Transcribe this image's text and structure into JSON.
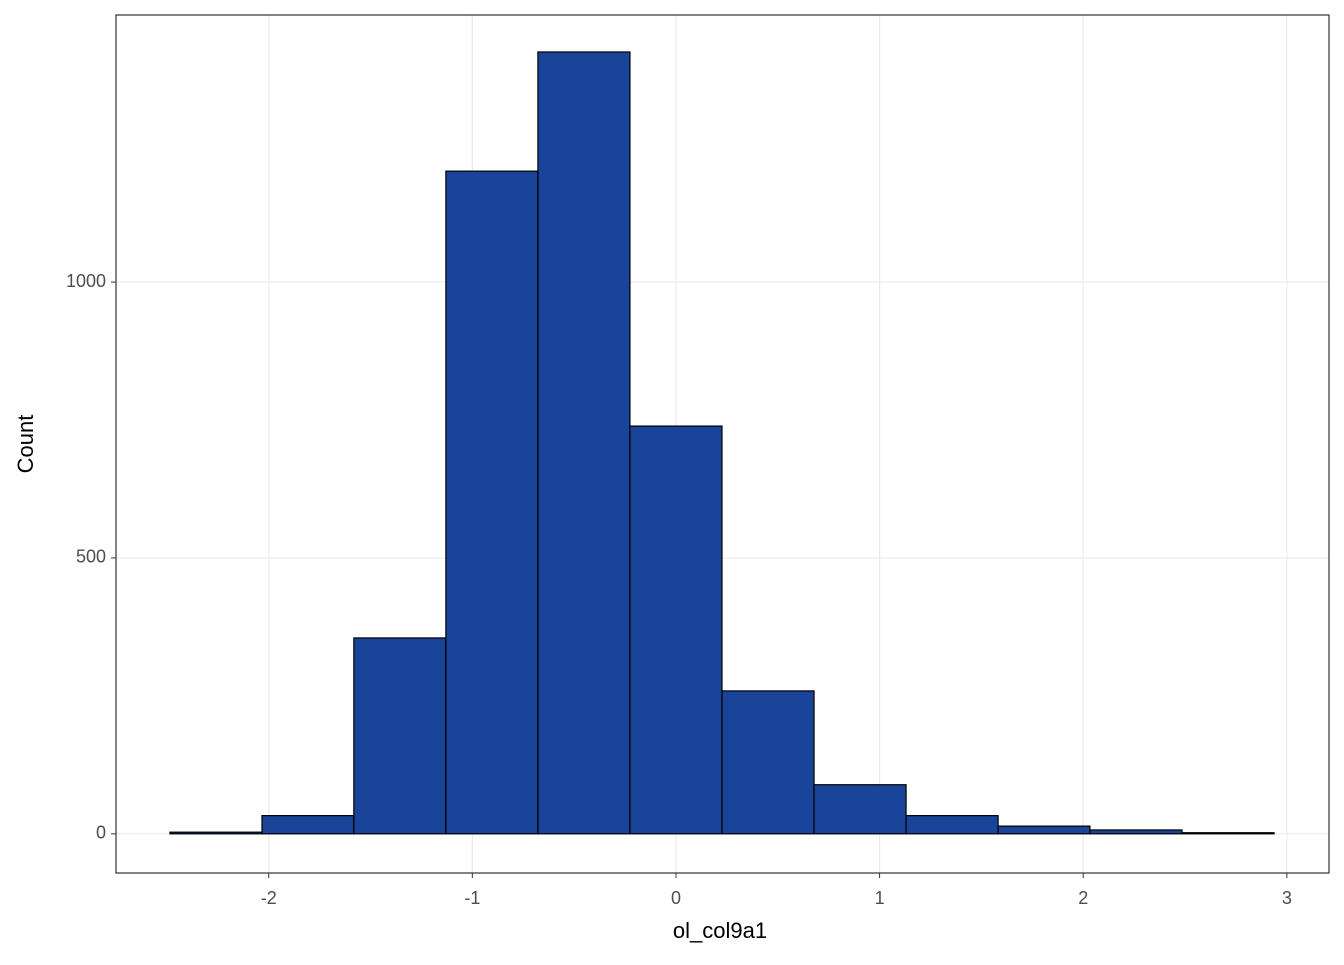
{
  "chart_data": {
    "type": "histogram",
    "x_label": "ol_col9a1",
    "y_label": "Count",
    "bins": [
      -2.485,
      -2.033,
      -1.582,
      -1.13,
      -0.678,
      -0.226,
      0.226,
      0.678,
      1.13,
      1.582,
      2.033,
      2.485,
      2.937
    ],
    "counts": [
      3,
      33,
      355,
      1201,
      1417,
      739,
      259,
      89,
      33,
      14,
      7,
      2
    ],
    "color": "#1a449a",
    "xlim": [
      -2.75,
      3.207
    ],
    "xticks": [
      -2,
      -1,
      0,
      1,
      2,
      3
    ],
    "ylim": [
      -71,
      1484
    ],
    "yticks": [
      0,
      500,
      1000
    ],
    "grid": true
  }
}
